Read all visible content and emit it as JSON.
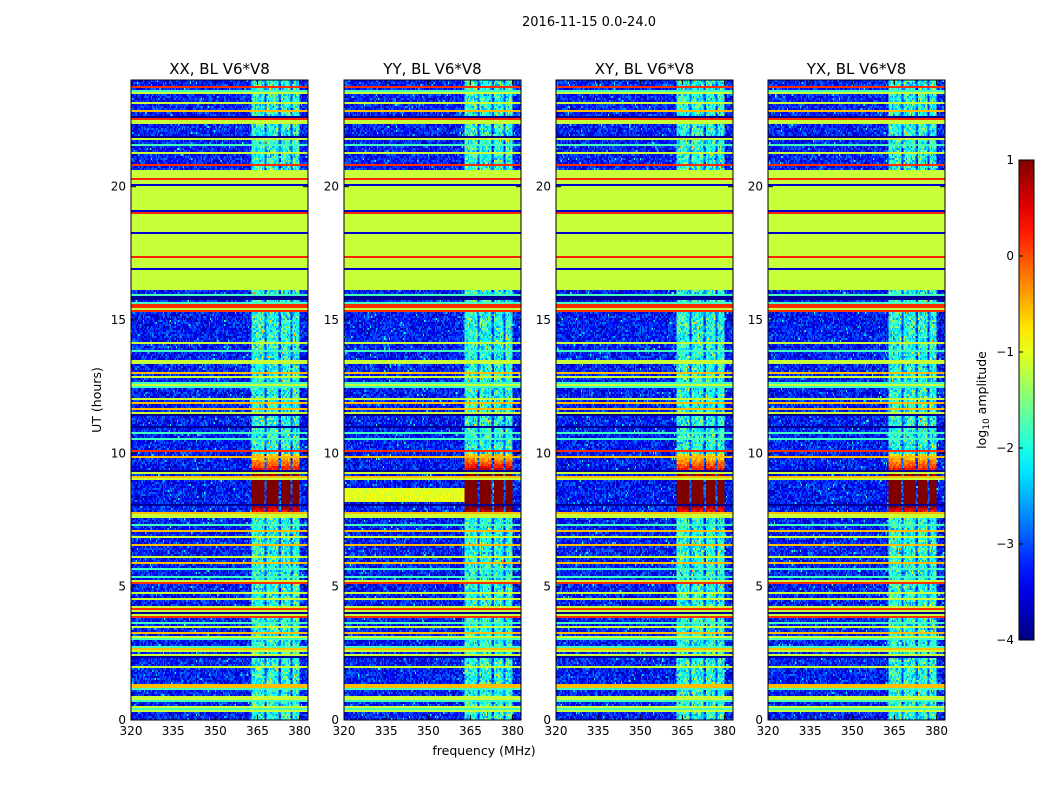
{
  "chart_data": {
    "type": "heatmap",
    "title": "2016-11-15 0.0-24.0",
    "xlabel": "frequency (MHz)",
    "ylabel": "UT (hours)",
    "colorbar_label": "log10 amplitude",
    "colorbar_label_base": "log",
    "colorbar_label_sub": "10",
    "colorbar_label_rest": "amplitude",
    "colormap": "jet",
    "xlim": [
      320,
      383
    ],
    "ylim": [
      0,
      24
    ],
    "clim": [
      -4,
      1
    ],
    "xticks": [
      320,
      335,
      350,
      365,
      380
    ],
    "yticks": [
      0,
      5,
      10,
      15,
      20
    ],
    "cticks": [
      1,
      0,
      -1,
      -2,
      -3,
      -4
    ],
    "cticks_labels": [
      "1",
      "0",
      "−1",
      "−2",
      "−3",
      "−4"
    ],
    "panels": [
      {
        "title": "XX, BL V6*V8",
        "pol": "XX"
      },
      {
        "title": "YY, BL V6*V8",
        "pol": "YY"
      },
      {
        "title": "XY, BL V6*V8",
        "pol": "XY"
      },
      {
        "title": "YX, BL V6*V8",
        "pol": "YX"
      }
    ],
    "features": {
      "rfi_band_mhz": [
        363,
        380
      ],
      "rfi_subbands_mhz": [
        [
          363,
          367.5
        ],
        [
          368.5,
          372.5
        ],
        [
          373.5,
          376.5
        ],
        [
          377.5,
          380
        ]
      ],
      "strong_event_hours": [
        7.8,
        10.0
      ],
      "flagged_block_hours": [
        16.1,
        20.6
      ],
      "flagged_value": -1.15,
      "background_value": -3.3
    }
  }
}
